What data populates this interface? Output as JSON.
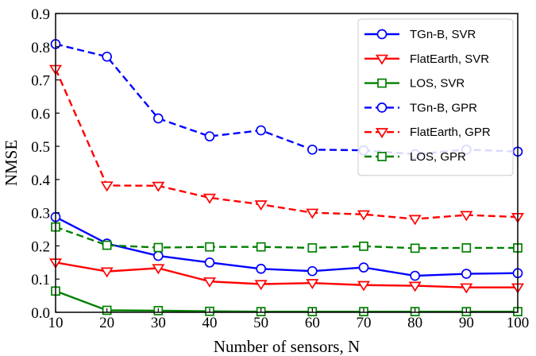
{
  "chart_data": {
    "type": "line",
    "title": "",
    "xlabel": "Number of sensors, N",
    "ylabel": "NMSE",
    "x": [
      10,
      20,
      30,
      40,
      50,
      60,
      70,
      80,
      90,
      100
    ],
    "xlim": [
      10,
      100
    ],
    "ylim": [
      0,
      0.9
    ],
    "xticks": [
      "10",
      "20",
      "30",
      "40",
      "50",
      "60",
      "70",
      "80",
      "90",
      "100"
    ],
    "yticks": [
      "0.0",
      "0.1",
      "0.2",
      "0.3",
      "0.4",
      "0.5",
      "0.6",
      "0.7",
      "0.8",
      "0.9"
    ],
    "grid": false,
    "legend_position": "top-right",
    "series": [
      {
        "name": "TGn-B, SVR",
        "color": "#0000ff",
        "linestyle": "solid",
        "marker": "circle",
        "values": [
          0.287,
          0.207,
          0.17,
          0.15,
          0.131,
          0.124,
          0.135,
          0.11,
          0.116,
          0.118
        ]
      },
      {
        "name": "FlatEarth, SVR",
        "color": "#ff0000",
        "linestyle": "solid",
        "marker": "triangle-down",
        "values": [
          0.15,
          0.123,
          0.133,
          0.093,
          0.085,
          0.088,
          0.082,
          0.08,
          0.075,
          0.075
        ]
      },
      {
        "name": "LOS, SVR",
        "color": "#008000",
        "linestyle": "solid",
        "marker": "square",
        "values": [
          0.064,
          0.006,
          0.005,
          0.003,
          0.002,
          0.002,
          0.002,
          0.002,
          0.002,
          0.002
        ]
      },
      {
        "name": "TGn-B, GPR",
        "color": "#0000ff",
        "linestyle": "dashed",
        "marker": "circle",
        "values": [
          0.808,
          0.77,
          0.584,
          0.53,
          0.548,
          0.49,
          0.488,
          0.476,
          0.49,
          0.484
        ]
      },
      {
        "name": "FlatEarth, GPR",
        "color": "#ff0000",
        "linestyle": "dashed",
        "marker": "triangle-down",
        "values": [
          0.733,
          0.382,
          0.381,
          0.345,
          0.325,
          0.3,
          0.295,
          0.281,
          0.293,
          0.287
        ]
      },
      {
        "name": "LOS, GPR",
        "color": "#008000",
        "linestyle": "dashed",
        "marker": "square",
        "values": [
          0.257,
          0.202,
          0.195,
          0.197,
          0.197,
          0.194,
          0.199,
          0.193,
          0.194,
          0.194
        ]
      }
    ]
  }
}
